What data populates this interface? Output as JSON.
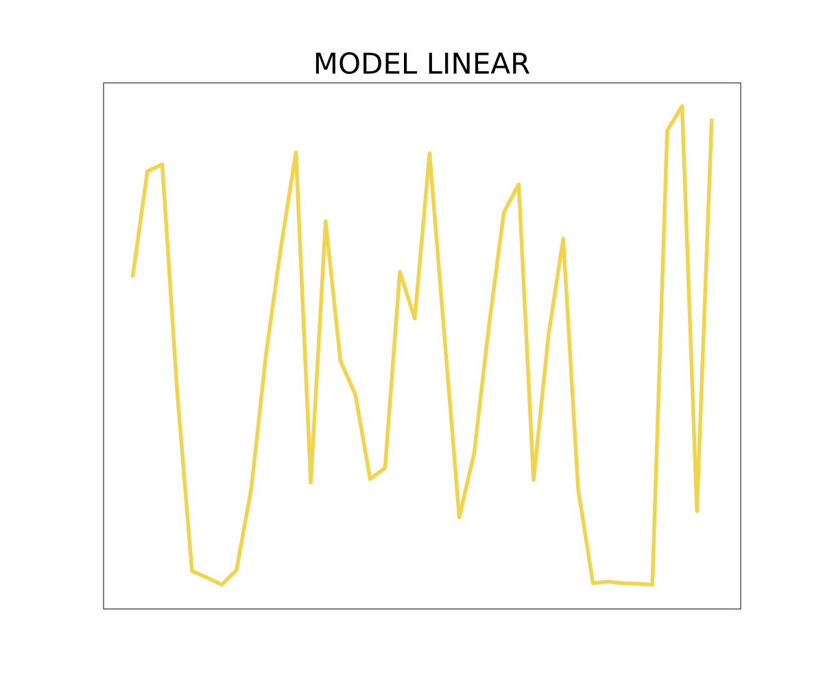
{
  "chart_data": {
    "type": "line",
    "title": "MODEL LINEAR",
    "x": [
      0,
      1,
      2,
      3,
      4,
      5,
      6,
      7,
      8,
      9,
      10,
      11,
      12,
      13,
      14,
      15,
      16,
      17,
      18,
      19,
      20,
      21,
      22,
      23,
      24,
      25,
      26,
      27,
      28,
      29,
      30,
      31,
      32,
      33,
      34,
      35,
      36,
      37,
      38,
      39
    ],
    "series": [
      {
        "color": "#f2d34c",
        "values": [
          63.0,
          83.2,
          84.5,
          41.5,
          7.2,
          6.0,
          4.6,
          7.4,
          23.0,
          48.7,
          68.9,
          86.8,
          24.0,
          73.7,
          47.1,
          40.8,
          24.7,
          26.8,
          64.1,
          55.2,
          86.6,
          51.9,
          17.4,
          29.6,
          53.9,
          75.4,
          80.7,
          24.5,
          51.9,
          70.4,
          22.8,
          4.9,
          5.2,
          4.9,
          4.8,
          4.6,
          90.9,
          95.6,
          18.6,
          93.2
        ]
      }
    ],
    "xlim": [
      -1.95,
      40.95
    ],
    "ylim": [
      0,
      100
    ]
  }
}
